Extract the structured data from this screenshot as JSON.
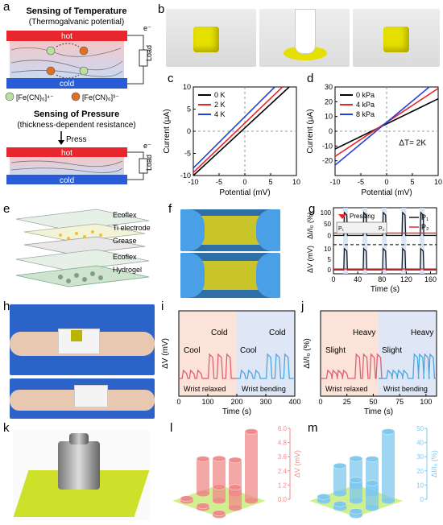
{
  "panel_letters": {
    "a": "a",
    "b": "b",
    "c": "c",
    "d": "d",
    "e": "e",
    "f": "f",
    "g": "g",
    "h": "h",
    "i": "i",
    "j": "j",
    "k": "k",
    "l": "l",
    "m": "m"
  },
  "schematic": {
    "temp_title": "Sensing of Temperature",
    "temp_subtitle": "(Thermogalvanic potential)",
    "hot": "hot",
    "cold": "cold",
    "load": "Load",
    "electron": "e⁻",
    "legend_a": "[Fe(CN)₆]⁴⁻",
    "legend_b": "[Fe(CN)₆]³⁻",
    "pressure_title": "Sensing of Pressure",
    "pressure_subtitle": "(thickness-dependent resistance)",
    "press": "Press",
    "colors": {
      "hot": "#e8262d",
      "cold": "#2a5bd7",
      "ion_a": "#b8e0a0",
      "ion_b": "#e07020"
    }
  },
  "exploded": {
    "layers": [
      "Ecoflex",
      "Ti electrode",
      "Grease",
      "Ecoflex",
      "Hydrogel"
    ]
  },
  "chart_data": [
    {
      "id": "c",
      "type": "line",
      "xlabel": "Potential (mV)",
      "ylabel": "Current (μA)",
      "xlim": [
        -10,
        10
      ],
      "ylim": [
        -10,
        10
      ],
      "xticks": [
        -10,
        -5,
        0,
        5,
        10
      ],
      "yticks": [
        -10,
        -5,
        0,
        5,
        10
      ],
      "legend_position": "top-left",
      "series": [
        {
          "name": "0 K",
          "color": "#000000",
          "x": [
            -10,
            8.6
          ],
          "y": [
            -10,
            10
          ]
        },
        {
          "name": "2 K",
          "color": "#e8262d",
          "x": [
            -10,
            7.3
          ],
          "y": [
            -9.3,
            10
          ]
        },
        {
          "name": "4 K",
          "color": "#2a3fd8",
          "x": [
            -10,
            5.8
          ],
          "y": [
            -8.3,
            10
          ]
        }
      ]
    },
    {
      "id": "d",
      "type": "line",
      "xlabel": "Potential (mV)",
      "ylabel": "Current (μA)",
      "xlim": [
        -10,
        10
      ],
      "ylim": [
        -30,
        30
      ],
      "xticks": [
        -10,
        -5,
        0,
        5,
        10
      ],
      "yticks": [
        -20,
        -10,
        0,
        10,
        20,
        30
      ],
      "legend_position": "top-left",
      "annotation": "ΔT= 2K",
      "series": [
        {
          "name": "0 kPa",
          "color": "#000000",
          "x": [
            -10,
            10
          ],
          "y": [
            -12,
            22
          ]
        },
        {
          "name": "4 kPa",
          "color": "#e8262d",
          "x": [
            -10,
            10
          ],
          "y": [
            -17,
            29
          ]
        },
        {
          "name": "8 kPa",
          "color": "#2a3fd8",
          "x": [
            -10,
            10
          ],
          "y": [
            -23,
            35
          ]
        }
      ]
    },
    {
      "id": "g",
      "type": "line",
      "xlabel": "Time (s)",
      "ylabel_top": "ΔI/I₀ (%)",
      "ylabel_bottom": "ΔV (mV)",
      "xlim": [
        0,
        170
      ],
      "xticks": [
        0,
        40,
        80,
        120,
        160
      ],
      "yticks_top": [
        0,
        50,
        100
      ],
      "yticks_bottom": [
        0,
        5,
        10
      ],
      "inset_label": "Pressing",
      "p1": "P₁",
      "p2": "P₂",
      "series": [
        {
          "name": "P₁",
          "color": "#1a1a1a",
          "pulses_top": [
            20,
            52,
            84,
            116,
            146
          ],
          "peak_top": 95,
          "pulses_bottom": [
            20,
            52,
            84,
            116,
            146
          ],
          "peak_bottom": 9
        },
        {
          "name": "P₂",
          "color": "#e8262d",
          "pulses_top": [],
          "peak_top": 0,
          "pulses_bottom": [],
          "peak_bottom": 0
        }
      ]
    },
    {
      "id": "i",
      "type": "line",
      "xlabel": "Time (s)",
      "ylabel": "ΔV (mV)",
      "xlim": [
        0,
        400
      ],
      "xticks": [
        0,
        100,
        200,
        300,
        400
      ],
      "region_labels": [
        "Wrist relaxed",
        "Wrist bending"
      ],
      "annotations": [
        "Cool",
        "Cold",
        "Cool",
        "Cold"
      ],
      "series": [
        {
          "name": "relaxed",
          "color": "#e06070",
          "x": [
            20,
            45,
            70,
            110,
            140,
            170
          ],
          "y": [
            1,
            1,
            1,
            3,
            3,
            3
          ]
        },
        {
          "name": "bending",
          "color": "#4aa8e0",
          "x": [
            220,
            245,
            270,
            310,
            340,
            370
          ],
          "y": [
            1,
            1,
            1,
            3,
            3,
            3
          ]
        }
      ]
    },
    {
      "id": "j",
      "type": "line",
      "xlabel": "Time (s)",
      "ylabel": "ΔI/I₀ (%)",
      "xlim": [
        0,
        110
      ],
      "xticks": [
        0,
        25,
        50,
        75,
        100
      ],
      "region_labels": [
        "Wrist relaxed",
        "Wrist bending"
      ],
      "annotations": [
        "Slight",
        "Heavy",
        "Slight",
        "Heavy"
      ],
      "series": [
        {
          "name": "relaxed",
          "color": "#e06070",
          "x": [
            8,
            13,
            18,
            23,
            35,
            42,
            49,
            55
          ],
          "y": [
            1,
            1,
            1,
            1,
            3,
            3,
            3,
            3
          ]
        },
        {
          "name": "bending",
          "color": "#4aa8e0",
          "x": [
            65,
            70,
            75,
            80,
            90,
            95,
            100,
            105
          ],
          "y": [
            1,
            1,
            1,
            1,
            3,
            3,
            3,
            3
          ]
        }
      ]
    },
    {
      "id": "l",
      "type": "bar",
      "zlabel": "ΔV (mV)",
      "zticks": [
        "0.0",
        "1.2",
        "2.4",
        "3.6",
        "4.8",
        "6.0"
      ],
      "color": "#f08a8a",
      "values": [
        2.4,
        2.9,
        6.0,
        3.0,
        1.2,
        1.8,
        0.2,
        0.2,
        0.2
      ]
    },
    {
      "id": "m",
      "type": "bar",
      "zlabel": "ΔI/I₀ (%)",
      "zticks": [
        "0",
        "10",
        "20",
        "30",
        "40",
        "50"
      ],
      "color": "#7ec8ee",
      "values": [
        20,
        25,
        50,
        20,
        15,
        18,
        3,
        3,
        3
      ]
    }
  ]
}
